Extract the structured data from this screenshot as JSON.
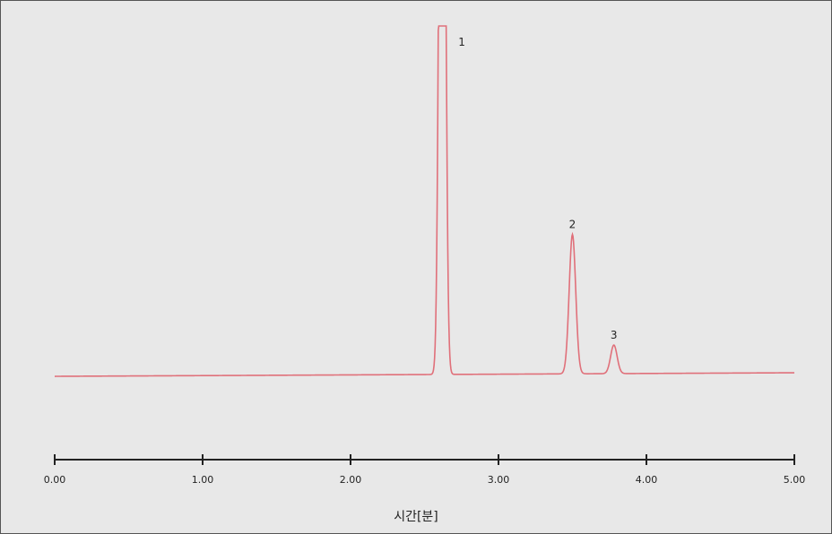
{
  "chart_data": {
    "type": "line",
    "xlabel": "시간[분]",
    "ylabel": "",
    "xlim": [
      0,
      5
    ],
    "ylim": [
      0,
      1
    ],
    "x_ticks": [
      "0.00",
      "1.00",
      "2.00",
      "3.00",
      "4.00",
      "5.00"
    ],
    "grid": false,
    "legend": "none",
    "line_color": "#e0707a",
    "baseline": {
      "start": 0.02,
      "end": 0.03
    },
    "peaks": [
      {
        "label": "1",
        "x": 2.62,
        "height": 1.0,
        "clipped": true
      },
      {
        "label": "2",
        "x": 3.5,
        "height": 0.39
      },
      {
        "label": "3",
        "x": 3.78,
        "height": 0.08
      }
    ]
  }
}
